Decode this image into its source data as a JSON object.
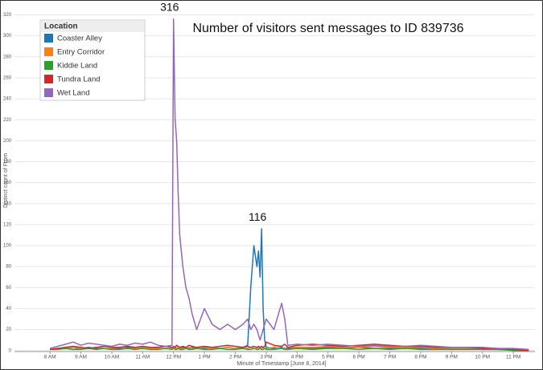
{
  "chart_data": {
    "type": "line",
    "title": "Number of visitors sent messages to ID 839736",
    "x_label": "Minute of Timestamp [June 8, 2014]",
    "y_label": "Distinct count of From",
    "legend_title": "Location",
    "legend": "top-left",
    "grid": true,
    "annotations": [
      {
        "text": "316",
        "x": 12,
        "y": 316
      },
      {
        "text": "116",
        "x": 14.85,
        "y": 116
      }
    ],
    "xlim": [
      6.85,
      23.7
    ],
    "xticks": [
      {
        "value": 8,
        "label": "8 AM"
      },
      {
        "value": 9,
        "label": "9 AM"
      },
      {
        "value": 10,
        "label": "10 AM"
      },
      {
        "value": 11,
        "label": "11 AM"
      },
      {
        "value": 12,
        "label": "12 PM"
      },
      {
        "value": 13,
        "label": "1 PM"
      },
      {
        "value": 14,
        "label": "2 PM"
      },
      {
        "value": 15,
        "label": "3 PM"
      },
      {
        "value": 16,
        "label": "4 PM"
      },
      {
        "value": 17,
        "label": "5 PM"
      },
      {
        "value": 18,
        "label": "6 PM"
      },
      {
        "value": 19,
        "label": "7 PM"
      },
      {
        "value": 20,
        "label": "8 PM"
      },
      {
        "value": 21,
        "label": "9 PM"
      },
      {
        "value": 22,
        "label": "10 PM"
      },
      {
        "value": 23,
        "label": "11 PM"
      }
    ],
    "ylim": [
      -1,
      325
    ],
    "yticks": [
      0,
      20,
      40,
      60,
      80,
      100,
      120,
      140,
      160,
      180,
      200,
      220,
      240,
      260,
      280,
      300,
      320
    ],
    "x": [
      8,
      8.25,
      8.5,
      8.75,
      9,
      9.25,
      9.5,
      9.75,
      10,
      10.25,
      10.5,
      10.75,
      11,
      11.25,
      11.5,
      11.75,
      11.95,
      12,
      12.05,
      12.1,
      12.15,
      12.2,
      12.3,
      12.4,
      12.5,
      12.6,
      12.75,
      13,
      13.25,
      13.5,
      13.75,
      14,
      14.25,
      14.4,
      14.5,
      14.6,
      14.7,
      14.75,
      14.8,
      14.85,
      14.9,
      14.95,
      15,
      15.25,
      15.5,
      15.6,
      15.7,
      16,
      16.5,
      17,
      17.5,
      18,
      18.5,
      19,
      19.5,
      20,
      20.5,
      21,
      21.5,
      22,
      22.5,
      23,
      23.5
    ],
    "series": [
      {
        "name": "Coaster Alley",
        "color": "#1f77b4",
        "values": [
          1,
          2,
          2,
          1,
          2,
          3,
          2,
          2,
          1,
          2,
          3,
          2,
          2,
          3,
          2,
          2,
          2,
          2,
          3,
          2,
          2,
          2,
          3,
          2,
          2,
          3,
          2,
          2,
          3,
          2,
          3,
          2,
          3,
          5,
          60,
          100,
          80,
          95,
          70,
          116,
          40,
          10,
          3,
          2,
          3,
          2,
          2,
          3,
          2,
          3,
          2,
          3,
          2,
          2,
          3,
          2,
          2,
          1,
          2,
          1,
          1,
          1,
          0
        ]
      },
      {
        "name": "Entry Corridor",
        "color": "#ff7f0e",
        "values": [
          1,
          2,
          2,
          3,
          2,
          2,
          3,
          2,
          2,
          3,
          2,
          2,
          3,
          2,
          2,
          2,
          2,
          3,
          2,
          2,
          3,
          2,
          2,
          2,
          3,
          2,
          2,
          3,
          2,
          2,
          3,
          2,
          2,
          2,
          3,
          2,
          2,
          3,
          2,
          2,
          3,
          2,
          2,
          3,
          2,
          2,
          3,
          3,
          3,
          4,
          3,
          3,
          4,
          3,
          3,
          3,
          2,
          2,
          2,
          2,
          1,
          1,
          0
        ]
      },
      {
        "name": "Kiddie Land",
        "color": "#2ca02c",
        "values": [
          1,
          1,
          2,
          1,
          1,
          2,
          1,
          2,
          1,
          1,
          2,
          1,
          2,
          1,
          1,
          2,
          1,
          2,
          1,
          1,
          2,
          1,
          1,
          2,
          1,
          1,
          2,
          1,
          1,
          2,
          1,
          1,
          2,
          1,
          1,
          2,
          1,
          1,
          2,
          1,
          1,
          2,
          1,
          1,
          2,
          1,
          1,
          2,
          1,
          2,
          2,
          1,
          2,
          1,
          2,
          1,
          1,
          1,
          1,
          1,
          1,
          0,
          0
        ]
      },
      {
        "name": "Tundra Land",
        "color": "#d62728",
        "values": [
          1,
          2,
          3,
          4,
          3,
          2,
          3,
          4,
          3,
          3,
          4,
          3,
          4,
          3,
          3,
          4,
          3,
          4,
          3,
          5,
          4,
          3,
          4,
          3,
          5,
          4,
          3,
          4,
          3,
          4,
          5,
          4,
          3,
          4,
          3,
          4,
          3,
          4,
          3,
          4,
          3,
          4,
          8,
          5,
          4,
          6,
          3,
          5,
          6,
          5,
          4,
          5,
          6,
          5,
          4,
          4,
          3,
          3,
          3,
          2,
          2,
          1,
          0
        ]
      },
      {
        "name": "Wet Land",
        "color": "#9467bd",
        "values": [
          2,
          4,
          6,
          8,
          5,
          7,
          6,
          5,
          4,
          6,
          5,
          7,
          6,
          8,
          5,
          4,
          5,
          316,
          220,
          200,
          150,
          110,
          80,
          60,
          50,
          35,
          20,
          40,
          25,
          20,
          25,
          20,
          25,
          30,
          20,
          25,
          20,
          15,
          10,
          15,
          20,
          25,
          30,
          20,
          45,
          30,
          5,
          6,
          5,
          6,
          5,
          4,
          5,
          4,
          4,
          5,
          4,
          3,
          3,
          3,
          2,
          2,
          1
        ]
      }
    ]
  }
}
